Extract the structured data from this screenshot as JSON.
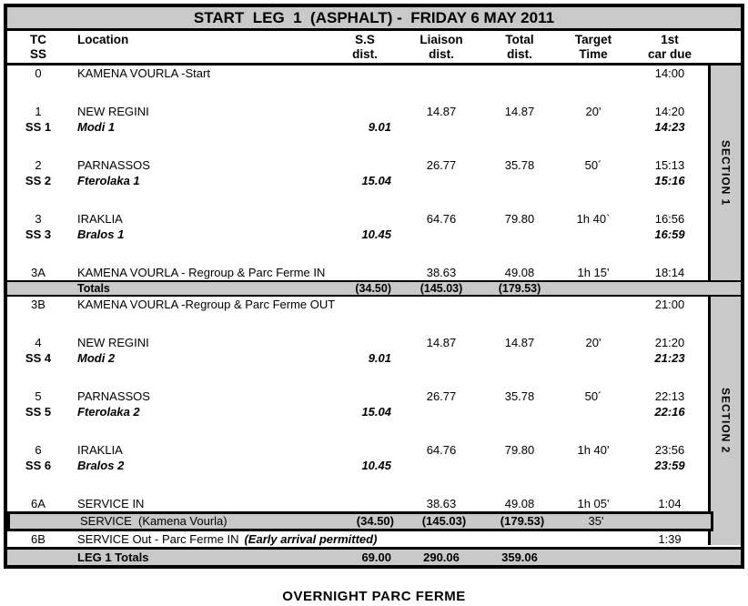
{
  "title": "START  LEG  1  (ASPHALT) -  FRIDAY 6 MAY 2011",
  "header": {
    "tc1": "TC",
    "tc2": "SS",
    "location": "Location",
    "ss1": "S.S",
    "ss2": "dist.",
    "liaison1": "Liaison",
    "liaison2": "dist.",
    "total1": "Total",
    "total2": "dist.",
    "target1": "Target",
    "target2": "Time",
    "due1": "1st",
    "due2": "car due"
  },
  "sections": {
    "section1": "SECTION 1",
    "section2": "SECTION 2"
  },
  "rows": [
    {
      "type": "tc",
      "tc": "0",
      "location": "KAMENA VOURLA -Start",
      "ss": "",
      "liaison": "",
      "total": "",
      "target": "",
      "due": "14:00"
    },
    {
      "type": "spacer"
    },
    {
      "type": "tc",
      "tc": "1",
      "location": "NEW REGINI",
      "ss": "",
      "liaison": "14.87",
      "total": "14.87",
      "target": "20'",
      "due": "14:20"
    },
    {
      "type": "stage",
      "tc": "SS 1",
      "location": "Modi 1",
      "ss": "9.01",
      "liaison": "",
      "total": "",
      "target": "",
      "due": "14:23"
    },
    {
      "type": "spacer"
    },
    {
      "type": "tc",
      "tc": "2",
      "location": "PARNASSOS",
      "ss": "",
      "liaison": "26.77",
      "total": "35.78",
      "target": "50´",
      "due": "15:13"
    },
    {
      "type": "stage",
      "tc": "SS 2",
      "location": "Fterolaka 1",
      "ss": "15.04",
      "liaison": "",
      "total": "",
      "target": "",
      "due": "15:16"
    },
    {
      "type": "spacer"
    },
    {
      "type": "tc",
      "tc": "3",
      "location": "IRAKLIA",
      "ss": "",
      "liaison": "64.76",
      "total": "79.80",
      "target": "1h 40`",
      "due": "16:56"
    },
    {
      "type": "stage",
      "tc": "SS 3",
      "location": "Bralos 1",
      "ss": "10.45",
      "liaison": "",
      "total": "",
      "target": "",
      "due": "16:59"
    },
    {
      "type": "spacer"
    },
    {
      "type": "tc",
      "tc": "3A",
      "location": "KAMENA VOURLA - Regroup & Parc Ferme IN",
      "ss": "",
      "liaison": "38.63",
      "total": "49.08",
      "target": "1h 15'",
      "due": "18:14"
    },
    {
      "type": "totals",
      "tc": "",
      "location": "Totals",
      "ss": "(34.50)",
      "liaison": "(145.03)",
      "total": "(179.53)",
      "target": "",
      "due": ""
    },
    {
      "type": "tc",
      "tc": "3B",
      "location": "KAMENA VOURLA -Regroup & Parc Ferme OUT",
      "ss": "",
      "liaison": "",
      "total": "",
      "target": "",
      "due": "21:00"
    },
    {
      "type": "spacer"
    },
    {
      "type": "tc",
      "tc": "4",
      "location": "NEW REGINI",
      "ss": "",
      "liaison": "14.87",
      "total": "14.87",
      "target": "20'",
      "due": "21:20"
    },
    {
      "type": "stage",
      "tc": "SS 4",
      "location": "Modi 2",
      "ss": "9.01",
      "liaison": "",
      "total": "",
      "target": "",
      "due": "21:23"
    },
    {
      "type": "spacer"
    },
    {
      "type": "tc",
      "tc": "5",
      "location": "PARNASSOS",
      "ss": "",
      "liaison": "26.77",
      "total": "35.78",
      "target": "50´",
      "due": "22:13"
    },
    {
      "type": "stage",
      "tc": "SS 5",
      "location": "Fterolaka 2",
      "ss": "15.04",
      "liaison": "",
      "total": "",
      "target": "",
      "due": "22:16"
    },
    {
      "type": "spacer"
    },
    {
      "type": "tc",
      "tc": "6",
      "location": "IRAKLIA",
      "ss": "",
      "liaison": "64.76",
      "total": "79.80",
      "target": "1h 40'",
      "due": "23:56"
    },
    {
      "type": "stage",
      "tc": "SS 6",
      "location": "Bralos 2",
      "ss": "10.45",
      "liaison": "",
      "total": "",
      "target": "",
      "due": "23:59"
    },
    {
      "type": "spacer"
    },
    {
      "type": "tc",
      "tc": "6A",
      "location": "SERVICE IN",
      "ss": "",
      "liaison": "38.63",
      "total": "49.08",
      "target": "1h 05'",
      "due": "1:04"
    },
    {
      "type": "service",
      "tc": "",
      "location": "SERVICE  (Kamena Vourla)",
      "ss": "(34.50)",
      "liaison": "(145.03)",
      "total": "(179.53)",
      "target": "35'",
      "due": ""
    },
    {
      "type": "tc",
      "tc": "6B",
      "location": "SERVICE Out - Parc Ferme IN",
      "note": "(Early arrival permitted)",
      "ss": "",
      "liaison": "",
      "total": "",
      "target": "",
      "due": "1:39"
    },
    {
      "type": "leg",
      "tc": "",
      "location": "LEG 1 Totals",
      "ss": "69.00",
      "liaison": "290.06",
      "total": "359.06",
      "target": "",
      "due": ""
    }
  ],
  "footer": "OVERNIGHT PARC FERME",
  "colors": {
    "band_gray": "#c9c9c9",
    "border_black": "#000000"
  }
}
